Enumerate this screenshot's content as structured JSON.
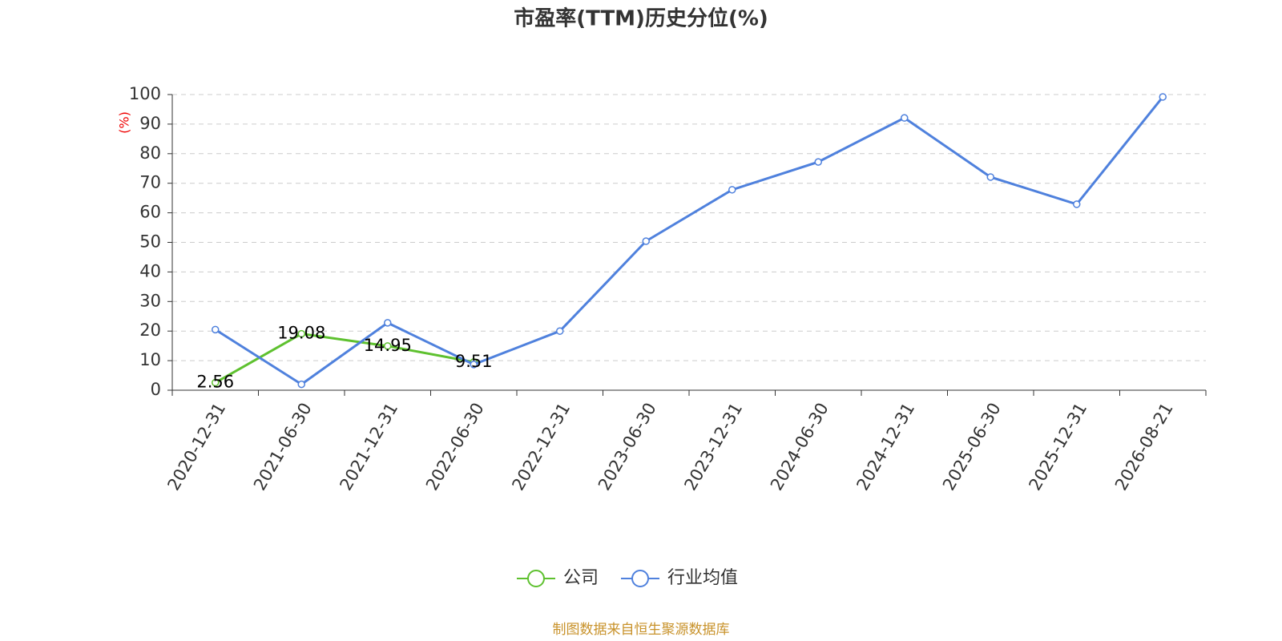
{
  "chart_data": {
    "type": "line",
    "title": "市盈率(TTM)历史分位(%)",
    "y_label": "(%)",
    "source": "制图数据来自恒生聚源数据库",
    "categories": [
      "2020-12-31",
      "2021-06-30",
      "2021-12-31",
      "2022-06-30",
      "2022-12-31",
      "2023-06-30",
      "2023-12-31",
      "2024-06-30",
      "2024-12-31",
      "2025-06-30",
      "2025-12-31",
      "2026-08-21"
    ],
    "series": [
      {
        "name": "公司",
        "color": "#5ec12f",
        "show_labels": true,
        "values": [
          2.56,
          19.08,
          14.95,
          9.51,
          null,
          null,
          null,
          null,
          null,
          null,
          null,
          null
        ]
      },
      {
        "name": "行业均值",
        "color": "#4f81dd",
        "show_labels": false,
        "values": [
          20.5,
          2,
          22.8,
          8.7,
          20,
          50.4,
          67.8,
          77.2,
          92.1,
          72.1,
          62.9,
          99.2
        ]
      }
    ],
    "ylim": [
      0,
      100
    ],
    "yticks": [
      0,
      10,
      20,
      30,
      40,
      50,
      60,
      70,
      80,
      90,
      100
    ],
    "grid": true
  }
}
